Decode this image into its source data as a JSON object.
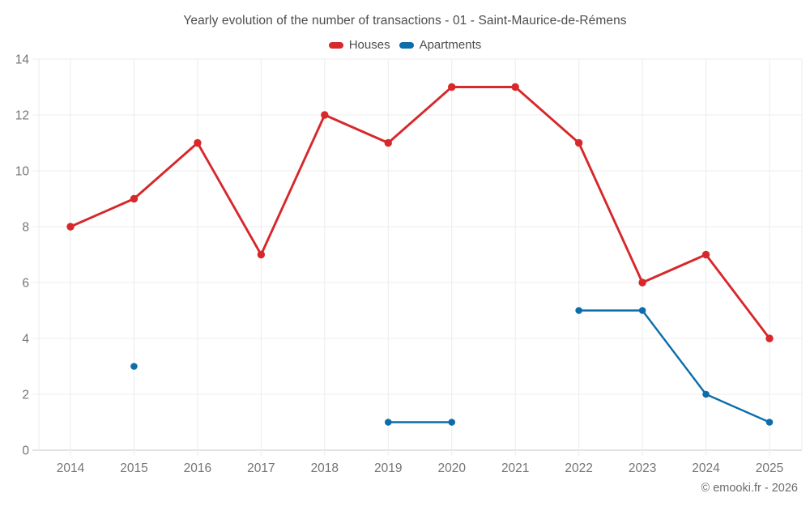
{
  "footer": {
    "copyright": "© emooki.fr - 2026"
  },
  "chart_data": {
    "type": "line",
    "title": "Yearly evolution of the number of transactions - 01 - Saint-Maurice-de-Rémens",
    "xlabel": "",
    "ylabel": "",
    "x_categories": [
      "2014",
      "2015",
      "2016",
      "2017",
      "2018",
      "2019",
      "2020",
      "2021",
      "2022",
      "2023",
      "2024",
      "2025"
    ],
    "series": [
      {
        "name": "Houses",
        "color": "#d7282b",
        "values": [
          8,
          9,
          11,
          7,
          12,
          11,
          13,
          13,
          11,
          6,
          7,
          4
        ]
      },
      {
        "name": "Apartments",
        "color": "#0d6dab",
        "values": [
          null,
          3,
          null,
          null,
          null,
          1,
          1,
          null,
          5,
          5,
          2,
          1
        ]
      }
    ],
    "ylim": [
      0,
      14
    ],
    "y_ticks": [
      0,
      2,
      4,
      6,
      8,
      10,
      12,
      14
    ],
    "grid": true,
    "legend_position": "top",
    "colors": {
      "grid_line": "#ececec",
      "zero_line": "#c9c9c9",
      "tick_label": "#757575"
    }
  }
}
